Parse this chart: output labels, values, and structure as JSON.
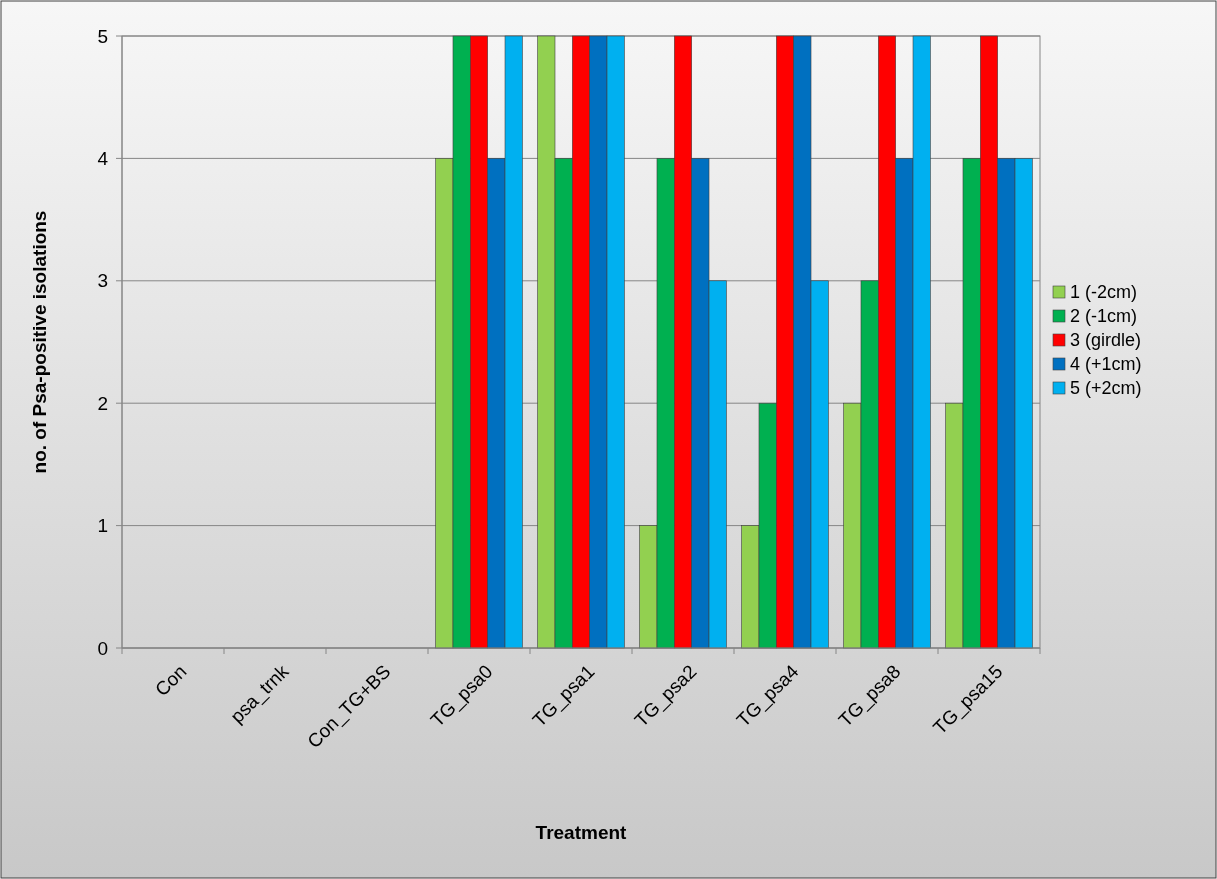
{
  "chart_data": {
    "type": "bar",
    "xlabel": "Treatment",
    "ylabel": "no. of Psa-positive isolations",
    "categories": [
      "Con",
      "psa_trnk",
      "Con_TG+BS",
      "TG_psa0",
      "TG_psa1",
      "TG_psa2",
      "TG_psa4",
      "TG_psa8",
      "TG_psa15"
    ],
    "series": [
      {
        "name": "1 (-2cm)",
        "color": "#92d050",
        "values": [
          0,
          0,
          0,
          4,
          5,
          1,
          1,
          2,
          2
        ]
      },
      {
        "name": "2 (-1cm)",
        "color": "#00b050",
        "values": [
          0,
          0,
          0,
          5,
          4,
          4,
          2,
          3,
          4
        ]
      },
      {
        "name": "3 (girdle)",
        "color": "#ff0000",
        "values": [
          0,
          0,
          0,
          5,
          5,
          5,
          5,
          5,
          5
        ]
      },
      {
        "name": "4 (+1cm)",
        "color": "#0070c0",
        "values": [
          0,
          0,
          0,
          4,
          5,
          4,
          5,
          4,
          4
        ]
      },
      {
        "name": "5 (+2cm)",
        "color": "#00b0f0",
        "values": [
          0,
          0,
          0,
          5,
          5,
          3,
          3,
          5,
          4
        ]
      }
    ],
    "ylim": [
      0,
      5
    ],
    "yticks": [
      0,
      1,
      2,
      3,
      4,
      5
    ],
    "grid": "y",
    "legend": "right"
  }
}
